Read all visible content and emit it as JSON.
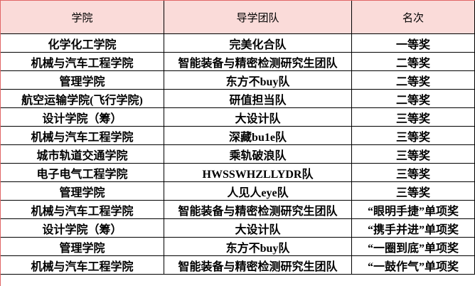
{
  "table": {
    "columns": [
      "学院",
      "导学团队",
      "名次"
    ],
    "rows": [
      [
        "化学化工学院",
        "完美化合队",
        "一等奖"
      ],
      [
        "机械与汽车工程学院",
        "智能装备与精密检测研究生团队",
        "二等奖"
      ],
      [
        "管理学院",
        "东方不buy队",
        "二等奖"
      ],
      [
        "航空运输学院(飞行学院)",
        "研值担当队",
        "二等奖"
      ],
      [
        "设计学院（筹）",
        "大设计队",
        "三等奖"
      ],
      [
        "机械与汽车工程学院",
        "深藏bu1e队",
        "三等奖"
      ],
      [
        "城市轨道交通学院",
        "乘轨破浪队",
        "三等奖"
      ],
      [
        "电子电气工程学院",
        "HWSSWHZLLYDR队",
        "三等奖"
      ],
      [
        "管理学院",
        "人见人eye队",
        "三等奖"
      ],
      [
        "机械与汽车工程学院",
        "智能装备与精密检测研究生团队",
        "“眼明手捷”单项奖"
      ],
      [
        "设计学院（筹）",
        "大设计队",
        "“携手并进”单项奖"
      ],
      [
        "管理学院",
        "东方不buy队",
        "“一圈到底”单项奖"
      ],
      [
        "机械与汽车工程学院",
        "智能装备与精密检测研究生团队",
        "“一鼓作气”单项奖"
      ]
    ],
    "colors": {
      "header_bg": "#fadbd9",
      "grid": "#000000",
      "accent_border": "#e06666",
      "row_bg": "#ffffff"
    }
  }
}
